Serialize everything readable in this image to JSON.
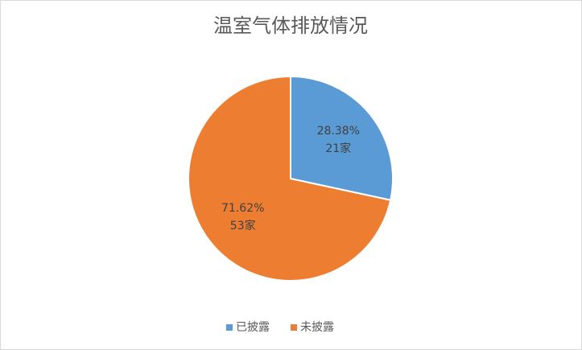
{
  "chart_data": {
    "type": "pie",
    "title": "温室气体排放情况",
    "categories": [
      "已披露",
      "未披露"
    ],
    "values": [
      28.38,
      71.62
    ],
    "value_labels": [
      "28.38%",
      "71.62%"
    ],
    "counts": [
      21,
      53
    ],
    "count_labels": [
      "21家",
      "53家"
    ],
    "colors": [
      "#5b9bd5",
      "#ed7d31"
    ],
    "legend": "bottom"
  }
}
